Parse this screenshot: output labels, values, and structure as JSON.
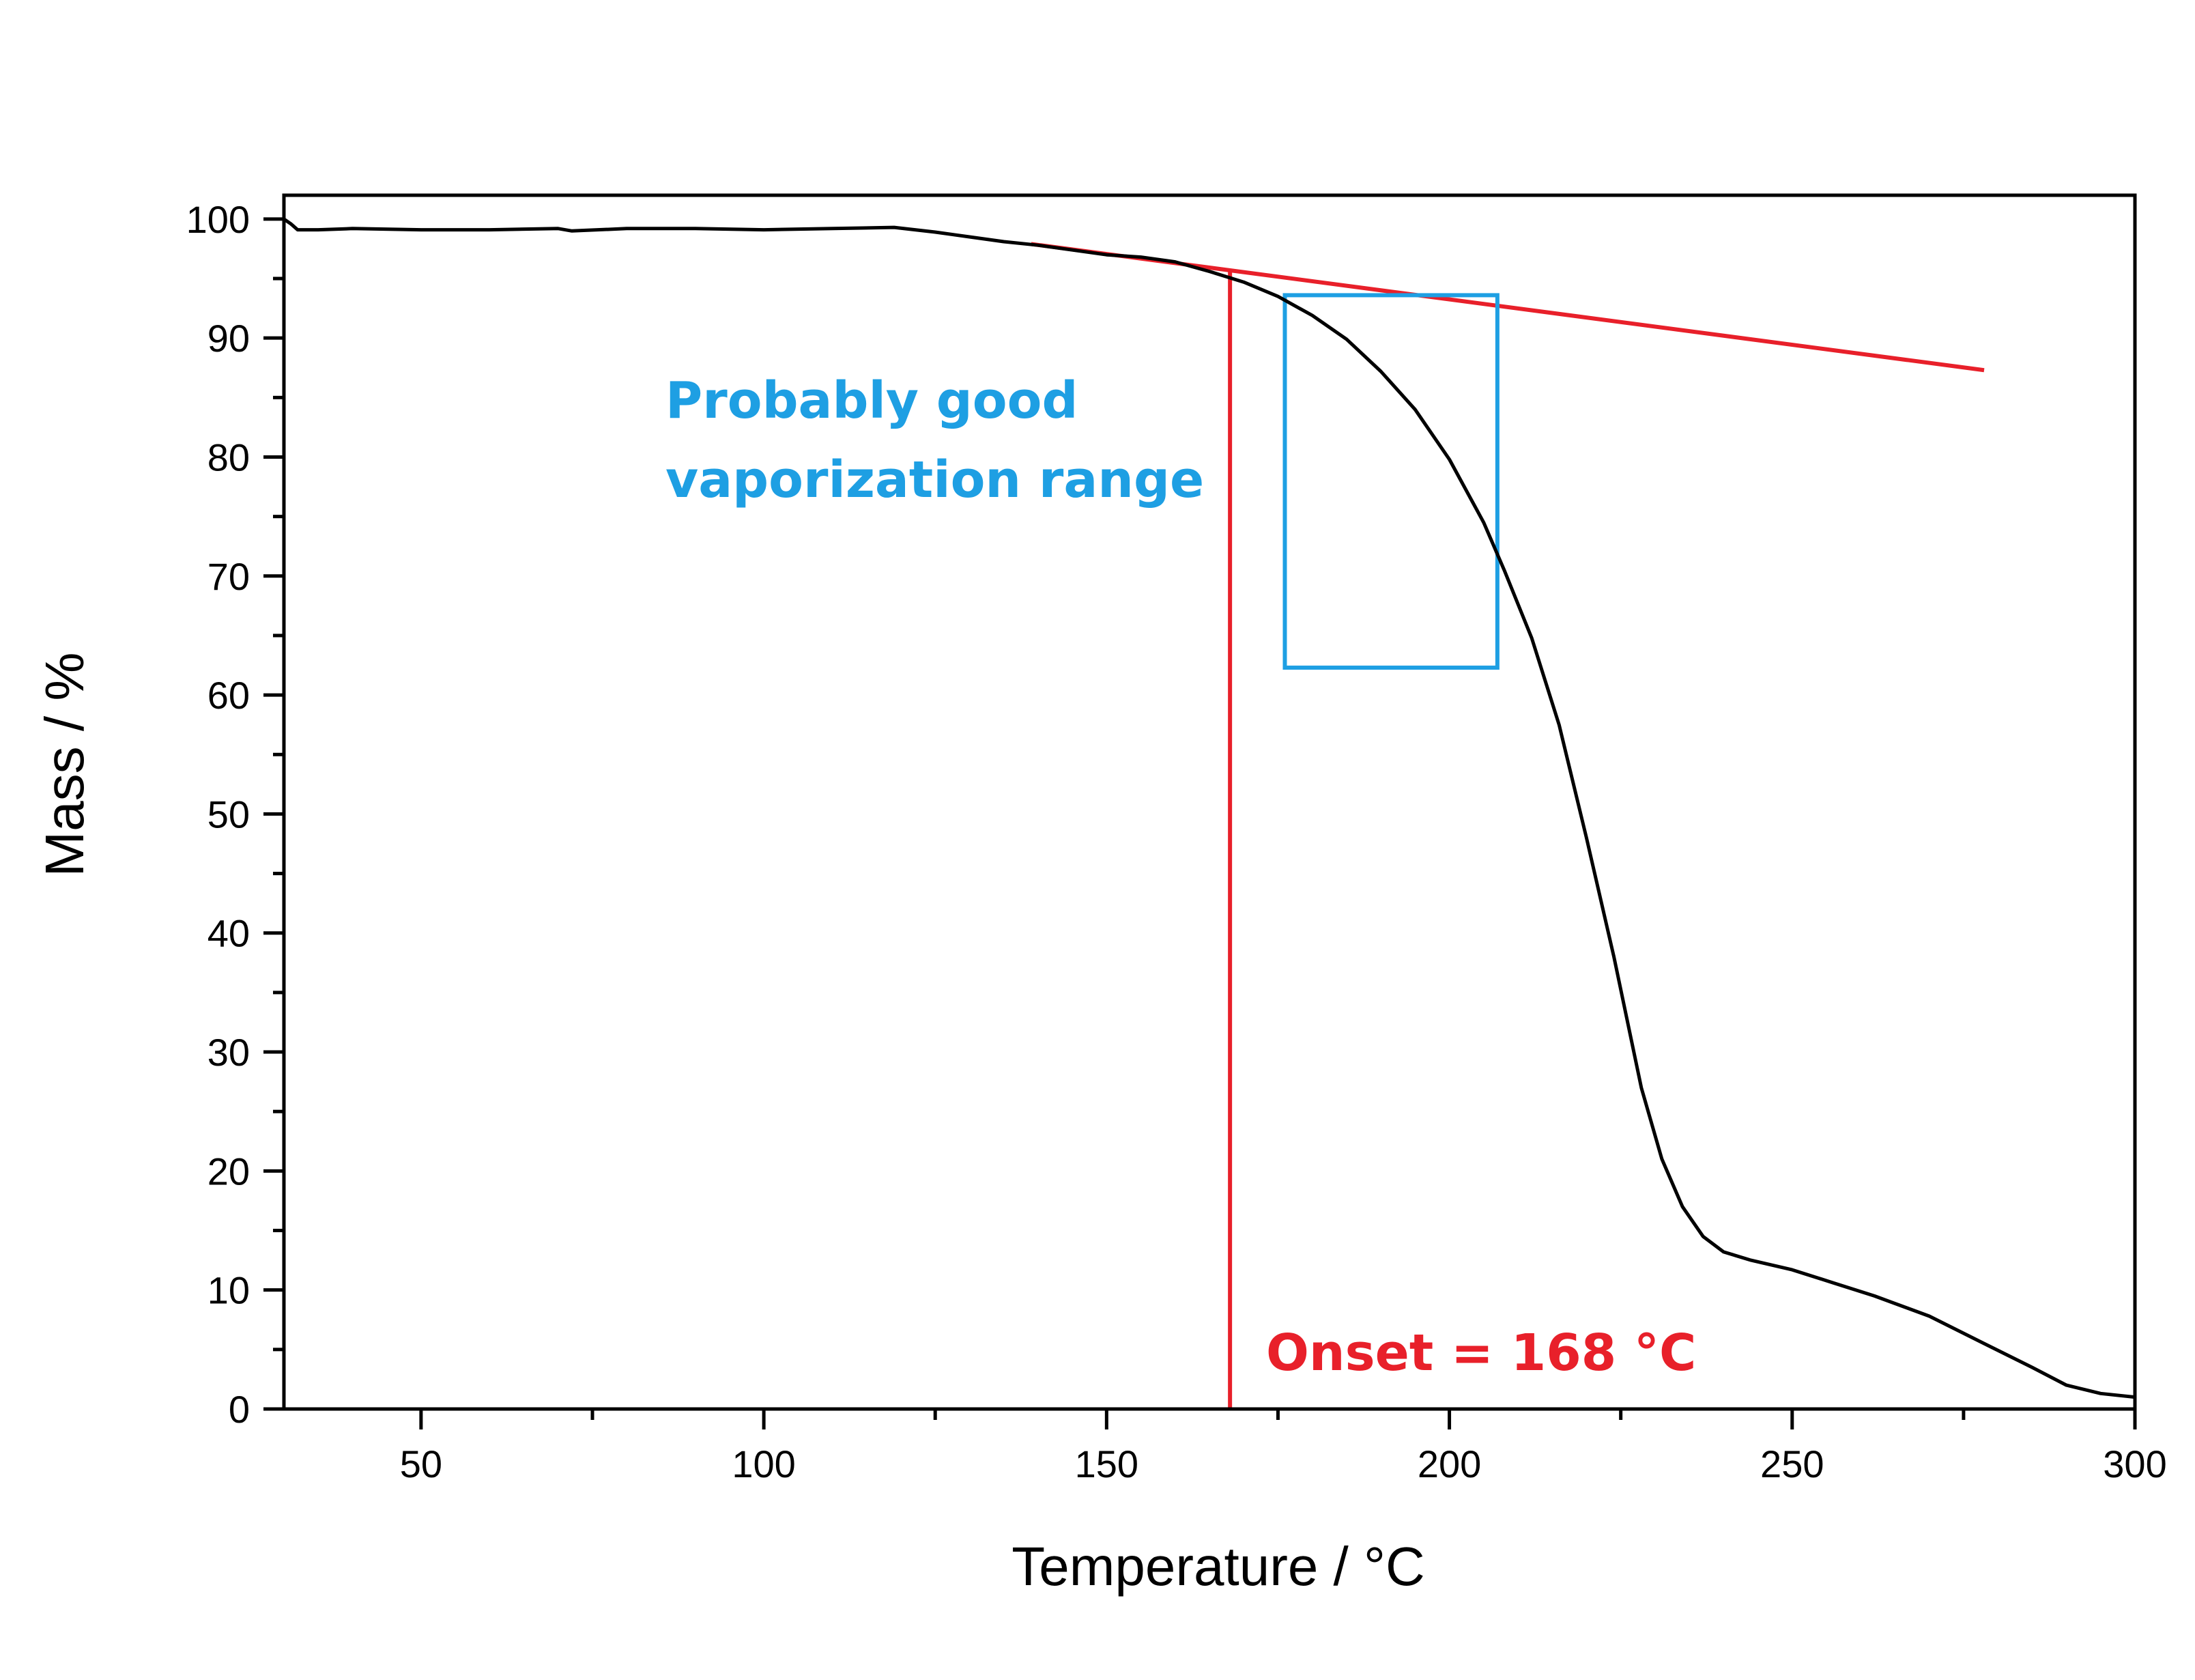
{
  "chart_data": {
    "type": "line",
    "title": "",
    "xlabel": "Temperature / °C",
    "ylabel": "Mass / %",
    "xlim": [
      30,
      300
    ],
    "ylim": [
      0,
      102
    ],
    "x_ticks": [
      50,
      100,
      150,
      200,
      250,
      300
    ],
    "y_ticks": [
      0,
      10,
      20,
      30,
      40,
      50,
      60,
      70,
      80,
      90,
      100
    ],
    "grid": false,
    "series": [
      {
        "color": "#000000",
        "points": [
          [
            30,
            100
          ],
          [
            31,
            99.6
          ],
          [
            32,
            99.1
          ],
          [
            35,
            99.1
          ],
          [
            40,
            99.2
          ],
          [
            50,
            99.1
          ],
          [
            60,
            99.1
          ],
          [
            70,
            99.2
          ],
          [
            72,
            99.0
          ],
          [
            80,
            99.2
          ],
          [
            90,
            99.2
          ],
          [
            100,
            99.1
          ],
          [
            110,
            99.2
          ],
          [
            119,
            99.3
          ],
          [
            125,
            98.9
          ],
          [
            130,
            98.5
          ],
          [
            135,
            98.1
          ],
          [
            140,
            97.8
          ],
          [
            145,
            97.4
          ],
          [
            150,
            97.0
          ],
          [
            155,
            96.8
          ],
          [
            160,
            96.4
          ],
          [
            165,
            95.6
          ],
          [
            170,
            94.7
          ],
          [
            175,
            93.5
          ],
          [
            180,
            91.9
          ],
          [
            185,
            89.9
          ],
          [
            190,
            87.2
          ],
          [
            195,
            84.0
          ],
          [
            200,
            79.8
          ],
          [
            205,
            74.5
          ],
          [
            208,
            70.5
          ],
          [
            212,
            64.8
          ],
          [
            216,
            57.5
          ],
          [
            220,
            48.0
          ],
          [
            224,
            38.0
          ],
          [
            228,
            27.0
          ],
          [
            231,
            21.0
          ],
          [
            234,
            17.0
          ],
          [
            237,
            14.5
          ],
          [
            240,
            13.2
          ],
          [
            244,
            12.5
          ],
          [
            250,
            11.7
          ],
          [
            256,
            10.6
          ],
          [
            262,
            9.5
          ],
          [
            270,
            7.8
          ],
          [
            278,
            5.5
          ],
          [
            285,
            3.5
          ],
          [
            290,
            2.0
          ],
          [
            295,
            1.3
          ],
          [
            300,
            1.0
          ]
        ]
      }
    ],
    "annotations": {
      "tangent_line": {
        "color": "#e8202a",
        "from": [
          139,
          97.9
        ],
        "to": [
          278,
          87.3
        ]
      },
      "onset_line": {
        "color": "#e8202a",
        "x": 168,
        "y_top": 95.8
      },
      "range_box": {
        "color": "#1e9fe3",
        "x0": 176,
        "x1": 207,
        "y0": 62.3,
        "y1": 93.6
      },
      "range_label": {
        "color": "#1e9fe3",
        "lines": [
          "Probably good",
          "vaporization range"
        ]
      },
      "onset_label": {
        "color": "#e8202a",
        "text": "Onset = 168 °C"
      }
    }
  }
}
